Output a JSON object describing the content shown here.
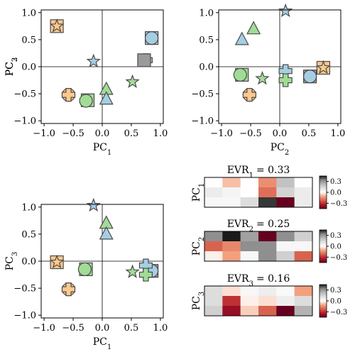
{
  "colors": {
    "blue": "#a6cee3",
    "green": "#a1dc96",
    "orange": "#fdc98e",
    "gray_square": "#9a9a9a"
  },
  "chart_data": [
    {
      "type": "scatter",
      "id": "pc1-pc2",
      "xlabel": "PC",
      "xlabel_sub": "1",
      "ylabel": "PC",
      "ylabel_sub": "2",
      "xlim": [
        -1.05,
        1.05
      ],
      "ylim": [
        -1.05,
        1.05
      ],
      "xticks": [
        -1.0,
        -0.5,
        0.0,
        0.5,
        1.0
      ],
      "yticks": [
        -1.0,
        -0.5,
        0.0,
        0.5,
        1.0
      ],
      "xtick_labels": [
        "−1.0",
        "−0.5",
        "0.0",
        "0.5",
        "1.0"
      ],
      "ytick_labels": [
        "−1.0",
        "−0.5",
        "0.0",
        "0.5",
        "1.0"
      ],
      "points": [
        {
          "x": -0.78,
          "y": 0.75,
          "marker": "square",
          "color": "orange"
        },
        {
          "x": -0.78,
          "y": 0.75,
          "marker": "star",
          "color": "orange"
        },
        {
          "x": -0.15,
          "y": 0.1,
          "marker": "star",
          "color": "blue"
        },
        {
          "x": 0.85,
          "y": 0.53,
          "marker": "square",
          "color": "blue"
        },
        {
          "x": 0.85,
          "y": 0.53,
          "marker": "circle",
          "color": "blue"
        },
        {
          "x": 0.75,
          "y": 0.12,
          "marker": "plus",
          "color": "green"
        },
        {
          "x": 0.72,
          "y": 0.12,
          "marker": "square",
          "color": "gray_square"
        },
        {
          "x": -0.58,
          "y": -0.52,
          "marker": "circle",
          "color": "orange"
        },
        {
          "x": -0.58,
          "y": -0.52,
          "marker": "plus",
          "color": "orange"
        },
        {
          "x": -0.25,
          "y": -0.62,
          "marker": "square",
          "color": "green"
        },
        {
          "x": -0.28,
          "y": -0.63,
          "marker": "circle",
          "color": "green"
        },
        {
          "x": 0.07,
          "y": -0.42,
          "marker": "triangle",
          "color": "green"
        },
        {
          "x": 0.07,
          "y": -0.6,
          "marker": "triangle",
          "color": "blue"
        },
        {
          "x": 0.52,
          "y": -0.28,
          "marker": "star",
          "color": "green"
        }
      ]
    },
    {
      "type": "scatter",
      "id": "pc2-pc3",
      "xlabel": "PC",
      "xlabel_sub": "2",
      "ylabel": "PC",
      "ylabel_sub": "3",
      "xlim": [
        -1.05,
        1.05
      ],
      "ylim": [
        -1.05,
        1.05
      ],
      "xticks": [
        -1.0,
        -0.5,
        0.0,
        0.5,
        1.0
      ],
      "yticks": [
        -1.0,
        -0.5,
        0.0,
        0.5,
        1.0
      ],
      "xtick_labels": [
        "−1.0",
        "−0.5",
        "0.0",
        "0.5",
        "1.0"
      ],
      "ytick_labels": [
        "−1.0",
        "−0.5",
        "0.0",
        "0.5",
        "1.0"
      ],
      "points": [
        {
          "x": 0.1,
          "y": 1.03,
          "marker": "star",
          "color": "blue"
        },
        {
          "x": -0.45,
          "y": 0.7,
          "marker": "triangle",
          "color": "green"
        },
        {
          "x": -0.65,
          "y": 0.5,
          "marker": "triangle",
          "color": "blue"
        },
        {
          "x": 0.75,
          "y": -0.02,
          "marker": "square",
          "color": "orange"
        },
        {
          "x": 0.75,
          "y": -0.02,
          "marker": "star",
          "color": "orange"
        },
        {
          "x": 0.1,
          "y": -0.08,
          "marker": "plus",
          "color": "blue"
        },
        {
          "x": 0.52,
          "y": -0.18,
          "marker": "square",
          "color": "gray_square"
        },
        {
          "x": 0.52,
          "y": -0.18,
          "marker": "circle",
          "color": "blue"
        },
        {
          "x": 0.1,
          "y": -0.25,
          "marker": "plus",
          "color": "green"
        },
        {
          "x": -0.65,
          "y": -0.15,
          "marker": "square",
          "color": "green"
        },
        {
          "x": -0.68,
          "y": -0.15,
          "marker": "circle",
          "color": "green"
        },
        {
          "x": -0.3,
          "y": -0.22,
          "marker": "star",
          "color": "green"
        },
        {
          "x": -0.52,
          "y": -0.52,
          "marker": "circle",
          "color": "orange"
        },
        {
          "x": -0.52,
          "y": -0.52,
          "marker": "plus",
          "color": "orange"
        }
      ]
    },
    {
      "type": "scatter",
      "id": "pc1-pc3",
      "xlabel": "PC",
      "xlabel_sub": "1",
      "ylabel": "PC",
      "ylabel_sub": "3",
      "xlim": [
        -1.05,
        1.05
      ],
      "ylim": [
        -1.05,
        1.05
      ],
      "xticks": [
        -1.0,
        -0.5,
        0.0,
        0.5,
        1.0
      ],
      "yticks": [
        -1.0,
        -0.5,
        0.0,
        0.5,
        1.0
      ],
      "xtick_labels": [
        "−1.0",
        "−0.5",
        "0.0",
        "0.5",
        "1.0"
      ],
      "ytick_labels": [
        "−1.0",
        "−0.5",
        "0.0",
        "0.5",
        "1.0"
      ],
      "points": [
        {
          "x": -0.15,
          "y": 1.03,
          "marker": "star",
          "color": "blue"
        },
        {
          "x": 0.07,
          "y": 0.7,
          "marker": "triangle",
          "color": "green"
        },
        {
          "x": 0.07,
          "y": 0.5,
          "marker": "triangle",
          "color": "blue"
        },
        {
          "x": -0.78,
          "y": -0.02,
          "marker": "square",
          "color": "orange"
        },
        {
          "x": -0.78,
          "y": -0.02,
          "marker": "star",
          "color": "orange"
        },
        {
          "x": 0.85,
          "y": -0.18,
          "marker": "square",
          "color": "gray_square"
        },
        {
          "x": 0.85,
          "y": -0.18,
          "marker": "circle",
          "color": "blue"
        },
        {
          "x": 0.75,
          "y": -0.08,
          "marker": "plus",
          "color": "blue"
        },
        {
          "x": 0.75,
          "y": -0.25,
          "marker": "plus",
          "color": "green"
        },
        {
          "x": 0.52,
          "y": -0.2,
          "marker": "star",
          "color": "green"
        },
        {
          "x": -0.28,
          "y": -0.15,
          "marker": "square",
          "color": "green"
        },
        {
          "x": -0.3,
          "y": -0.15,
          "marker": "circle",
          "color": "green"
        },
        {
          "x": -0.58,
          "y": -0.52,
          "marker": "circle",
          "color": "orange"
        },
        {
          "x": -0.58,
          "y": -0.52,
          "marker": "plus",
          "color": "orange"
        }
      ]
    },
    {
      "type": "heatmap",
      "id": "evr-1",
      "title_prefix": "EVR",
      "title_sub": "1",
      "title_value": "= 0.33",
      "ylabel": "PC",
      "ylabel_sub": "1",
      "vmin": -0.45,
      "vmax": 0.45,
      "colorbar_ticks": [
        0.3,
        0.0,
        -0.3
      ],
      "colorbar_tick_labels": [
        "0.3",
        "0.0",
        "−0.3"
      ],
      "rows": [
        [
          0.0,
          -0.08,
          0.0,
          -0.15,
          0.2,
          0.0
        ],
        [
          0.07,
          0.04,
          0.0,
          -0.2,
          0.15,
          0.07
        ],
        [
          0.03,
          0.03,
          0.12,
          0.42,
          -0.45,
          0.07
        ]
      ]
    },
    {
      "type": "heatmap",
      "id": "evr-2",
      "title_prefix": "EVR",
      "title_sub": "2",
      "title_value": "= 0.25",
      "ylabel": "PC",
      "ylabel_sub": "2",
      "vmin": -0.45,
      "vmax": 0.45,
      "colorbar_ticks": [
        0.3,
        0.0,
        -0.3
      ],
      "colorbar_tick_labels": [
        "0.3",
        "0.0",
        "−0.3"
      ],
      "rows": [
        [
          0.32,
          0.45,
          0.28,
          -0.45,
          0.32,
          0.16
        ],
        [
          -0.22,
          -0.16,
          0.32,
          0.32,
          0.03,
          0.03
        ],
        [
          -0.02,
          -0.12,
          0.03,
          0.32,
          0.16,
          -0.22
        ]
      ]
    },
    {
      "type": "heatmap",
      "id": "evr-3",
      "title_prefix": "EVR",
      "title_sub": "3",
      "title_value": "= 0.16",
      "ylabel": "PC",
      "ylabel_sub": "3",
      "vmin": -0.45,
      "vmax": 0.45,
      "colorbar_ticks": [
        0.3,
        0.0,
        -0.3
      ],
      "colorbar_tick_labels": [
        "0.3",
        "0.0",
        "−0.3"
      ],
      "rows": [
        [
          0.12,
          -0.04,
          0.03,
          0.06,
          0.02,
          -0.12
        ],
        [
          0.12,
          -0.3,
          -0.02,
          -0.04,
          0.06,
          0.12
        ],
        [
          0.16,
          -0.38,
          -0.06,
          -0.22,
          -0.45,
          0.24
        ]
      ]
    }
  ]
}
